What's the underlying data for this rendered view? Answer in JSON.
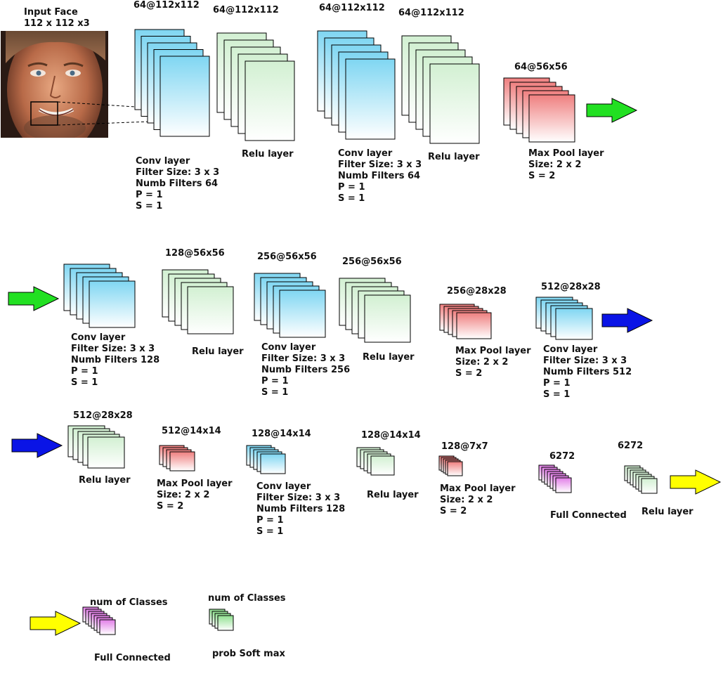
{
  "input": {
    "title": "Input Face",
    "size": "112 x 112 x3"
  },
  "colors": {
    "conv_top": "#7fd6f2",
    "relu_top": "#d2f0d2",
    "pool_top": "#ef7f7f",
    "fc_top": "#e27ee8",
    "softmax_top": "#8fe08f",
    "arrow_green": "#22e022",
    "arrow_blue": "#0a14e6",
    "arrow_yellow": "#ffff00"
  },
  "rows": [
    {
      "blocks": [
        {
          "type": "conv",
          "dims": "64@112x112",
          "lines": [
            "Conv layer",
            "Filter Size: 3 x 3",
            "Numb Filters 64",
            "P = 1",
            "S = 1"
          ]
        },
        {
          "type": "relu",
          "dims": "64@112x112",
          "lines": [
            "Relu layer"
          ]
        },
        {
          "type": "conv",
          "dims": "64@112x112",
          "lines": [
            "Conv layer",
            "Filter Size: 3 x 3",
            "Numb Filters 64",
            "P = 1",
            "S = 1"
          ]
        },
        {
          "type": "relu",
          "dims": "64@112x112",
          "lines": [
            "Relu layer"
          ]
        },
        {
          "type": "pool",
          "dims": "64@56x56",
          "lines": [
            "Max Pool layer",
            "Size: 2 x 2",
            "S = 2"
          ]
        }
      ]
    },
    {
      "blocks": [
        {
          "type": "conv",
          "dims": "",
          "lines": [
            "Conv layer",
            "Filter Size: 3 x 3",
            "Numb Filters 128",
            "P = 1",
            "S = 1"
          ]
        },
        {
          "type": "relu",
          "dims": "128@56x56",
          "lines": [
            "Relu layer"
          ]
        },
        {
          "type": "conv",
          "dims": "256@56x56",
          "lines": [
            "Conv layer",
            "Filter Size: 3 x 3",
            "Numb Filters 256",
            "P = 1",
            "S = 1"
          ]
        },
        {
          "type": "relu",
          "dims": "256@56x56",
          "lines": [
            "Relu layer"
          ]
        },
        {
          "type": "pool",
          "dims": "256@28x28",
          "lines": [
            "Max Pool layer",
            "Size: 2 x 2",
            "S = 2"
          ]
        },
        {
          "type": "conv",
          "dims": "512@28x28",
          "lines": [
            "Conv layer",
            "Filter Size: 3 x 3",
            "Numb Filters 512",
            "P = 1",
            "S = 1"
          ]
        }
      ]
    },
    {
      "blocks": [
        {
          "type": "relu",
          "dims": "512@28x28",
          "lines": [
            "Relu layer"
          ]
        },
        {
          "type": "pool",
          "dims": "512@14x14",
          "lines": [
            "Max Pool layer",
            "Size: 2 x 2",
            "S = 2"
          ]
        },
        {
          "type": "conv",
          "dims": "128@14x14",
          "lines": [
            "Conv layer",
            "Filter Size: 3 x 3",
            "Numb Filters 128",
            "P = 1",
            "S = 1"
          ]
        },
        {
          "type": "relu",
          "dims": "128@14x14",
          "lines": [
            "Relu layer"
          ]
        },
        {
          "type": "pool",
          "dims": "128@7x7",
          "lines": [
            "Max Pool layer",
            "Size: 2 x 2",
            "S = 2"
          ]
        },
        {
          "type": "fc",
          "dims": "6272",
          "lines": [
            "Full Connected"
          ]
        },
        {
          "type": "relu",
          "dims": "6272",
          "lines": [
            "Relu layer"
          ]
        }
      ]
    },
    {
      "blocks": [
        {
          "type": "fc",
          "dims": "num of Classes",
          "lines": [
            "Full Connected"
          ]
        },
        {
          "type": "softmax",
          "dims": "num of Classes",
          "lines": [
            "prob Soft max"
          ]
        }
      ]
    }
  ]
}
